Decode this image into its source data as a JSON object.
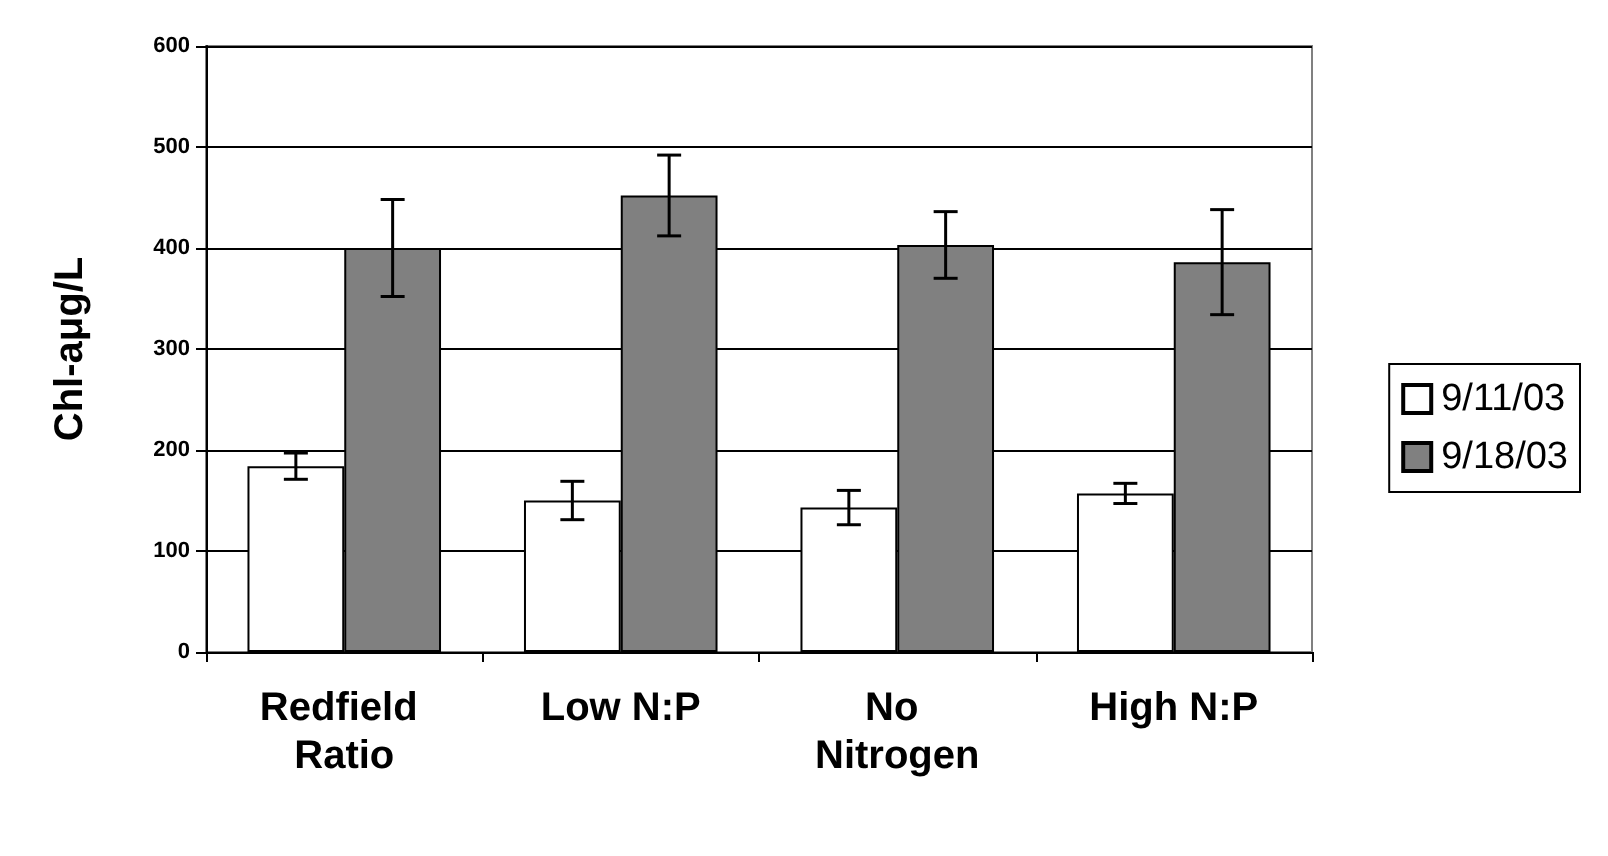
{
  "chart_data": {
    "type": "bar",
    "ylabel": "Chl-aμg/L",
    "categories": [
      "Redfield Ratio",
      "Low N:P",
      "No Nitrogen",
      "High N:P"
    ],
    "series": [
      {
        "name": "9/11/03",
        "color": "#ffffff",
        "values": [
          184,
          150,
          143,
          157
        ],
        "errors": [
          13,
          19,
          17,
          10
        ]
      },
      {
        "name": "9/18/03",
        "color": "#808080",
        "values": [
          400,
          452,
          403,
          386
        ],
        "errors": [
          48,
          40,
          33,
          52
        ]
      }
    ],
    "ylim": [
      0,
      600
    ],
    "yticks": [
      0,
      100,
      200,
      300,
      400,
      500,
      600
    ],
    "grid": "y",
    "legend": "right"
  }
}
